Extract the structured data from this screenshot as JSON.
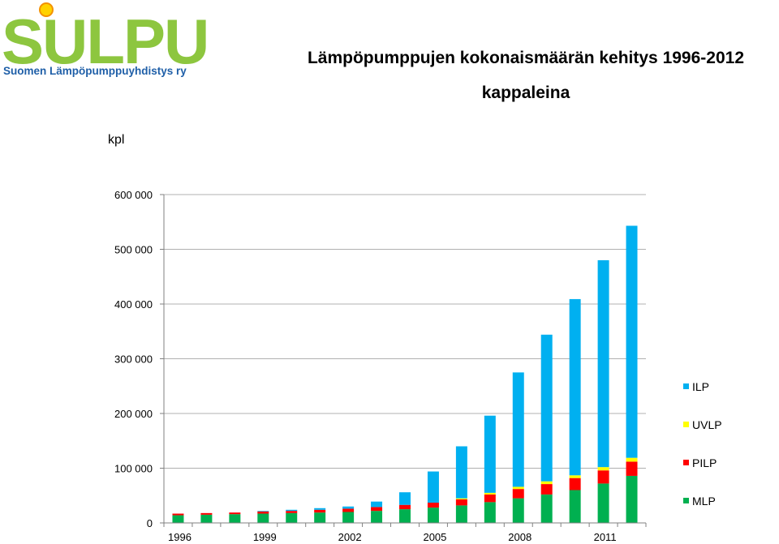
{
  "logo": {
    "wordmark": "SULPU",
    "subtitle": "Suomen Lämpöpumppuyhdistys ry"
  },
  "colors": {
    "ILP": "#00b0f0",
    "UVLP": "#ffff00",
    "PILP": "#ff0000",
    "MLP": "#00b050",
    "logo_green": "#8dc63f",
    "logo_blue": "#1f5fa8",
    "logo_red": "#d9262b",
    "logo_yellow": "#ffd200"
  },
  "chart_data": {
    "type": "bar",
    "stacked": true,
    "title": "Lämpöpumppujen kokonaismäärän kehitys 1996-2012",
    "subtitle": "kappaleina",
    "ylabel": "kpl",
    "xlabel": "",
    "ylim": [
      0,
      600000
    ],
    "yticks": [
      0,
      100000,
      200000,
      300000,
      400000,
      500000,
      600000
    ],
    "ytick_labels": [
      "0",
      "100 000",
      "200 000",
      "300 000",
      "400 000",
      "500 000",
      "600 000"
    ],
    "categories": [
      "1996",
      "1997",
      "1998",
      "1999",
      "2000",
      "2001",
      "2002",
      "2003",
      "2004",
      "2005",
      "2006",
      "2007",
      "2008",
      "2009",
      "2010",
      "2011",
      "2012"
    ],
    "xtick_labels": [
      "1996",
      "",
      "",
      "1999",
      "",
      "",
      "2002",
      "",
      "",
      "2005",
      "",
      "",
      "2008",
      "",
      "",
      "2011",
      ""
    ],
    "grid": true,
    "legend_position": "right",
    "series": [
      {
        "name": "MLP",
        "values": [
          14000,
          15000,
          16000,
          17000,
          18000,
          19000,
          20000,
          22000,
          25000,
          28000,
          32000,
          38000,
          45000,
          52000,
          60000,
          72000,
          86000
        ]
      },
      {
        "name": "PILP",
        "values": [
          3000,
          3000,
          3000,
          4000,
          4000,
          5000,
          6000,
          7000,
          8000,
          9000,
          11000,
          14000,
          17000,
          19000,
          22000,
          24000,
          26000
        ]
      },
      {
        "name": "UVLP",
        "values": [
          0,
          0,
          0,
          0,
          0,
          0,
          0,
          0,
          0,
          0,
          2000,
          3000,
          4000,
          5000,
          5000,
          6000,
          7000
        ]
      },
      {
        "name": "ILP",
        "values": [
          0,
          0,
          0,
          1000,
          2000,
          3000,
          4000,
          10000,
          23000,
          57000,
          95000,
          141000,
          209000,
          268000,
          322000,
          378000,
          424000
        ]
      }
    ],
    "legend_order": [
      "ILP",
      "UVLP",
      "PILP",
      "MLP"
    ]
  }
}
